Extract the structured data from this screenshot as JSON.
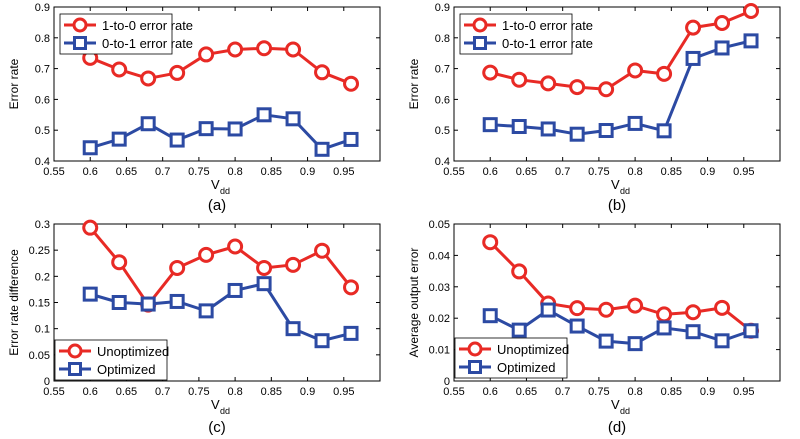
{
  "colors": {
    "red": "#e82a25",
    "blue": "#2c4aa3",
    "axis": "#000000"
  },
  "chart_data": [
    {
      "id": "a",
      "type": "line",
      "panel_label": "(a)",
      "xlabel_main": "V",
      "xlabel_sub": "dd",
      "ylabel": "Error rate",
      "xlim": [
        0.55,
        1.0
      ],
      "ylim": [
        0.4,
        0.9
      ],
      "xticks": [
        0.55,
        0.6,
        0.65,
        0.7,
        0.75,
        0.8,
        0.85,
        0.9,
        0.95
      ],
      "xtick_labels": [
        "0.55",
        "0.6",
        "0.65",
        "0.7",
        "0.75",
        "0.8",
        "0.85",
        "0.9",
        "0.95"
      ],
      "yticks": [
        0.4,
        0.5,
        0.6,
        0.7,
        0.8,
        0.9
      ],
      "ytick_labels": [
        "0.4",
        "0.5",
        "0.6",
        "0.7",
        "0.8",
        "0.9"
      ],
      "legend": "top-left",
      "x": [
        0.6,
        0.64,
        0.68,
        0.72,
        0.76,
        0.8,
        0.84,
        0.88,
        0.92,
        0.96
      ],
      "series": [
        {
          "name": "1-to-0 error rate",
          "color": "#e82a25",
          "marker": "circle",
          "values": [
            0.735,
            0.697,
            0.668,
            0.686,
            0.746,
            0.762,
            0.766,
            0.762,
            0.688,
            0.651
          ]
        },
        {
          "name": "0-to-1 error rate",
          "color": "#2c4aa3",
          "marker": "square",
          "values": [
            0.443,
            0.471,
            0.521,
            0.468,
            0.505,
            0.504,
            0.55,
            0.537,
            0.438,
            0.47
          ]
        }
      ]
    },
    {
      "id": "b",
      "type": "line",
      "panel_label": "(b)",
      "xlabel_main": "V",
      "xlabel_sub": "dd",
      "ylabel": "Error rate",
      "xlim": [
        0.55,
        1.0
      ],
      "ylim": [
        0.4,
        0.9
      ],
      "xticks": [
        0.55,
        0.6,
        0.65,
        0.7,
        0.75,
        0.8,
        0.85,
        0.9,
        0.95
      ],
      "xtick_labels": [
        "0.55",
        "0.6",
        "0.65",
        "0.7",
        "0.75",
        "0.8",
        "0.85",
        "0.9",
        "0.95"
      ],
      "yticks": [
        0.4,
        0.5,
        0.6,
        0.7,
        0.8,
        0.9
      ],
      "ytick_labels": [
        "0.4",
        "0.5",
        "0.6",
        "0.7",
        "0.8",
        "0.9"
      ],
      "legend": "top-left",
      "x": [
        0.6,
        0.64,
        0.68,
        0.72,
        0.76,
        0.8,
        0.84,
        0.88,
        0.92,
        0.96
      ],
      "series": [
        {
          "name": "1-to-0 error rate",
          "color": "#e82a25",
          "marker": "circle",
          "values": [
            0.687,
            0.664,
            0.652,
            0.64,
            0.633,
            0.694,
            0.683,
            0.833,
            0.848,
            0.887
          ]
        },
        {
          "name": "0-to-1 error rate",
          "color": "#2c4aa3",
          "marker": "square",
          "values": [
            0.518,
            0.512,
            0.504,
            0.487,
            0.499,
            0.522,
            0.498,
            0.733,
            0.767,
            0.79
          ]
        }
      ]
    },
    {
      "id": "c",
      "type": "line",
      "panel_label": "(c)",
      "xlabel_main": "V",
      "xlabel_sub": "dd",
      "ylabel": "Error rate difference",
      "xlim": [
        0.55,
        1.0
      ],
      "ylim": [
        0,
        0.3
      ],
      "xticks": [
        0.55,
        0.6,
        0.65,
        0.7,
        0.75,
        0.8,
        0.85,
        0.9,
        0.95
      ],
      "xtick_labels": [
        "0.55",
        "0.6",
        "0.65",
        "0.7",
        "0.75",
        "0.8",
        "0.85",
        "0.9",
        "0.95"
      ],
      "yticks": [
        0,
        0.05,
        0.1,
        0.15,
        0.2,
        0.25,
        0.3
      ],
      "ytick_labels": [
        "0",
        "0.05",
        "0.1",
        "0.15",
        "0.2",
        "0.25",
        "0.3"
      ],
      "legend": "bottom-left",
      "x": [
        0.6,
        0.64,
        0.68,
        0.72,
        0.76,
        0.8,
        0.84,
        0.88,
        0.92,
        0.96
      ],
      "series": [
        {
          "name": "Unoptimized",
          "color": "#e82a25",
          "marker": "circle",
          "values": [
            0.293,
            0.227,
            0.146,
            0.216,
            0.241,
            0.257,
            0.216,
            0.222,
            0.249,
            0.179
          ]
        },
        {
          "name": "Optimized",
          "color": "#2c4aa3",
          "marker": "square",
          "values": [
            0.166,
            0.15,
            0.147,
            0.152,
            0.134,
            0.173,
            0.186,
            0.1,
            0.077,
            0.091
          ]
        }
      ]
    },
    {
      "id": "d",
      "type": "line",
      "panel_label": "(d)",
      "xlabel_main": "V",
      "xlabel_sub": "dd",
      "ylabel": "Average output error",
      "xlim": [
        0.55,
        1.0
      ],
      "ylim": [
        0,
        0.05
      ],
      "xticks": [
        0.55,
        0.6,
        0.65,
        0.7,
        0.75,
        0.8,
        0.85,
        0.9,
        0.95
      ],
      "xtick_labels": [
        "0.55",
        "0.6",
        "0.65",
        "0.7",
        "0.75",
        "0.8",
        "0.85",
        "0.9",
        "0.95"
      ],
      "yticks": [
        0,
        0.01,
        0.02,
        0.03,
        0.04,
        0.05
      ],
      "ytick_labels": [
        "0",
        "0.01",
        "0.02",
        "0.03",
        "0.04",
        "0.05"
      ],
      "legend": "bottom-left",
      "x": [
        0.6,
        0.64,
        0.68,
        0.72,
        0.76,
        0.8,
        0.84,
        0.88,
        0.92,
        0.96
      ],
      "series": [
        {
          "name": "Unoptimized",
          "color": "#e82a25",
          "marker": "circle",
          "values": [
            0.0442,
            0.0349,
            0.0247,
            0.0232,
            0.0227,
            0.024,
            0.0212,
            0.0219,
            0.0233,
            0.016
          ]
        },
        {
          "name": "Optimized",
          "color": "#2c4aa3",
          "marker": "square",
          "values": [
            0.0208,
            0.0162,
            0.0226,
            0.0175,
            0.0127,
            0.0119,
            0.0169,
            0.0157,
            0.0128,
            0.016
          ]
        }
      ]
    }
  ]
}
